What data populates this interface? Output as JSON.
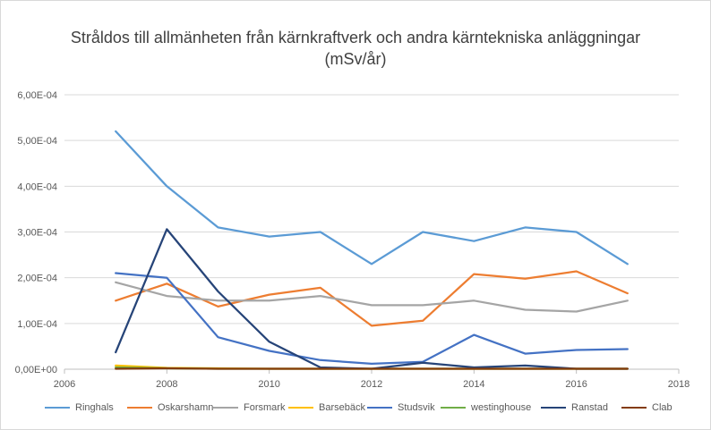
{
  "chart_data": {
    "type": "line",
    "title": "Stråldos till allmänheten från kärnkraftverk och andra kärntekniska anläggningar",
    "subtitle": "(mSv/år)",
    "xlim": [
      2006,
      2018
    ],
    "ylim": [
      0,
      0.0006
    ],
    "x_ticks": [
      2006,
      2008,
      2010,
      2012,
      2014,
      2016,
      2018
    ],
    "x_tick_labels": [
      "2006",
      "2008",
      "2010",
      "2012",
      "2014",
      "2016",
      "2018"
    ],
    "y_ticks": [
      0,
      0.0001,
      0.0002,
      0.0003,
      0.0004,
      0.0005,
      0.0006
    ],
    "y_tick_labels": [
      "0,00E+00",
      "1,00E-04",
      "2,00E-04",
      "3,00E-04",
      "4,00E-04",
      "5,00E-04",
      "6,00E-04"
    ],
    "grid": "horizontal",
    "legend_position": "bottom",
    "x": [
      2007,
      2008,
      2009,
      2010,
      2011,
      2012,
      2013,
      2014,
      2015,
      2016,
      2017
    ],
    "series": [
      {
        "name": "Ringhals",
        "color": "#5b9bd5",
        "values": [
          0.00052,
          0.0004,
          0.00031,
          0.00029,
          0.0003,
          0.00023,
          0.0003,
          0.00028,
          0.00031,
          0.0003,
          0.00023
        ]
      },
      {
        "name": "Oskarshamn",
        "color": "#ed7d31",
        "values": [
          0.00015,
          0.000187,
          0.000137,
          0.000163,
          0.000178,
          9.5e-05,
          0.000106,
          0.000208,
          0.000198,
          0.000214,
          0.000166
        ]
      },
      {
        "name": "Forsmark",
        "color": "#a5a5a5",
        "values": [
          0.00019,
          0.00016,
          0.00015,
          0.00015,
          0.00016,
          0.00014,
          0.00014,
          0.00015,
          0.00013,
          0.000126,
          0.00015
        ]
      },
      {
        "name": "Barsebäck",
        "color": "#ffc000",
        "values": [
          8e-06,
          3e-06,
          2e-06,
          1e-06,
          1e-06,
          1e-06,
          1e-06,
          1e-06,
          1e-06,
          1e-06,
          1e-06
        ]
      },
      {
        "name": "Studsvik",
        "color": "#4472c4",
        "values": [
          0.00021,
          0.0002,
          7e-05,
          4e-05,
          2e-05,
          1.2e-05,
          1.6e-05,
          7.5e-05,
          3.4e-05,
          4.2e-05,
          4.4e-05
        ]
      },
      {
        "name": "westinghouse",
        "color": "#70ad47",
        "values": [
          4e-06,
          2e-06,
          1e-06,
          1e-06,
          1e-06,
          1e-06,
          1e-06,
          1e-06,
          1e-06,
          1e-06,
          1e-06
        ]
      },
      {
        "name": "Ranstad",
        "color": "#264478",
        "values": [
          3.7e-05,
          0.000306,
          0.00017,
          6e-05,
          4e-06,
          1e-06,
          1.4e-05,
          4e-06,
          8e-06,
          1e-06,
          1e-06
        ]
      },
      {
        "name": "Clab",
        "color": "#843c0c",
        "values": [
          1e-06,
          2e-06,
          1e-06,
          1e-06,
          1e-06,
          1e-06,
          1e-06,
          1e-06,
          1e-06,
          1e-06,
          1e-06
        ]
      }
    ]
  }
}
